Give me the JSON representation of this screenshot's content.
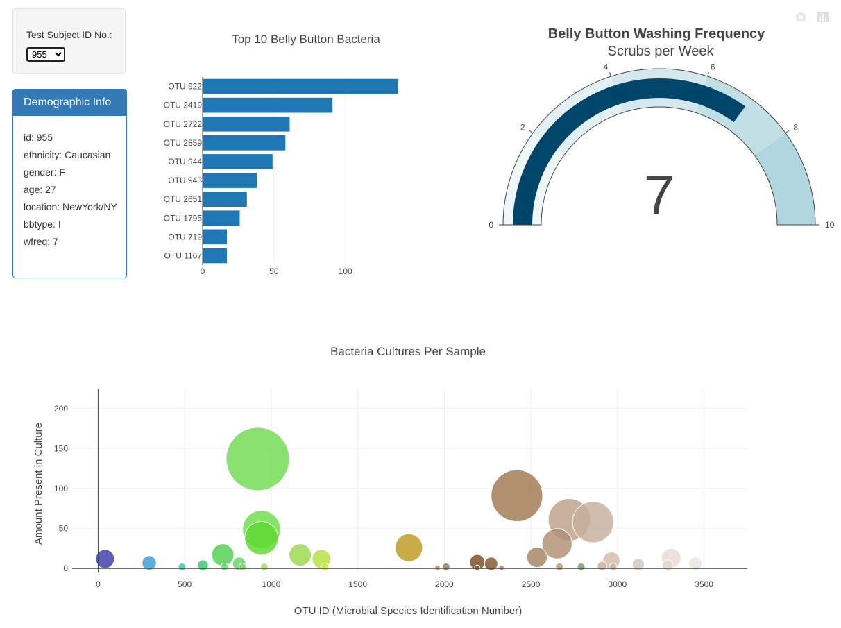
{
  "selector": {
    "label": "Test Subject ID No.:",
    "selected": "955"
  },
  "demographic": {
    "title": "Demographic Info",
    "rows": [
      "id: 955",
      "ethnicity: Caucasian",
      "gender: F",
      "age: 27",
      "location: NewYork/NY",
      "bbtype: I",
      "wfreq: 7"
    ]
  },
  "modebar": {
    "icons": [
      "camera-icon",
      "bar-chart-icon"
    ]
  },
  "colors": {
    "bar": "#1f77b4",
    "gauge_value": "#00456a",
    "gauge_steps": [
      "#f0f7f9",
      "#e3f0f4",
      "#d4e8ed",
      "#c3dfe6",
      "#afd5df"
    ]
  },
  "chart_data": [
    {
      "type": "bar",
      "orientation": "horizontal",
      "title": "Top 10 Belly Button Bacteria",
      "categories": [
        "OTU 922",
        "OTU 2419",
        "OTU 2722",
        "OTU 2859",
        "OTU 944",
        "OTU 943",
        "OTU 2651",
        "OTU 1795",
        "OTU 719",
        "OTU 1167"
      ],
      "values": [
        137,
        91,
        61,
        58,
        49,
        38,
        31,
        26,
        17,
        17
      ],
      "xlim": [
        0,
        140
      ],
      "xticks": [
        0,
        50,
        100
      ],
      "grid": true
    },
    {
      "type": "gauge",
      "title": "Belly Button Washing Frequency",
      "subtitle": "Scrubs per Week",
      "value": 7,
      "range": [
        0,
        10
      ],
      "ticks": [
        0,
        2,
        4,
        6,
        8,
        10
      ],
      "steps": [
        [
          0,
          2
        ],
        [
          2,
          4
        ],
        [
          4,
          6
        ],
        [
          6,
          8
        ],
        [
          8,
          10
        ]
      ]
    },
    {
      "type": "scatter",
      "mode": "bubble",
      "title": "Bacteria Cultures Per Sample",
      "xlabel": "OTU ID (Microbial Species Identification Number)",
      "ylabel": "Amount Present in Culture",
      "xlim": [
        -150,
        3750
      ],
      "ylim": [
        -5,
        225
      ],
      "xticks": [
        0,
        500,
        1000,
        1500,
        2000,
        2500,
        3000,
        3500
      ],
      "yticks": [
        0,
        50,
        100,
        150,
        200
      ],
      "grid": true,
      "points": [
        {
          "x": 40,
          "y": 12,
          "color": "#3b3ba8"
        },
        {
          "x": 295,
          "y": 7,
          "color": "#3a9ad4"
        },
        {
          "x": 485,
          "y": 2,
          "color": "#3ec0a8"
        },
        {
          "x": 605,
          "y": 4,
          "color": "#3cc574"
        },
        {
          "x": 720,
          "y": 17,
          "color": "#4fcf4f"
        },
        {
          "x": 730,
          "y": 2,
          "color": "#6bd66b"
        },
        {
          "x": 815,
          "y": 6,
          "color": "#63d463"
        },
        {
          "x": 835,
          "y": 2,
          "color": "#8fd878"
        },
        {
          "x": 922,
          "y": 137,
          "color": "#6fdc4f"
        },
        {
          "x": 943,
          "y": 38,
          "color": "#5cd92e"
        },
        {
          "x": 944,
          "y": 49,
          "color": "#6ede48"
        },
        {
          "x": 960,
          "y": 2,
          "color": "#a5dc6a"
        },
        {
          "x": 1167,
          "y": 17,
          "color": "#9bd84c"
        },
        {
          "x": 1290,
          "y": 12,
          "color": "#b7df3c"
        },
        {
          "x": 1310,
          "y": 2,
          "color": "#cde04a"
        },
        {
          "x": 1795,
          "y": 26,
          "color": "#bb9a1e"
        },
        {
          "x": 1960,
          "y": 1,
          "color": "#a0906a"
        },
        {
          "x": 2010,
          "y": 2,
          "color": "#8a7a5a"
        },
        {
          "x": 2190,
          "y": 8,
          "color": "#7a4a22"
        },
        {
          "x": 2190,
          "y": 1,
          "color": "#8a5a32"
        },
        {
          "x": 2270,
          "y": 6,
          "color": "#7e5530"
        },
        {
          "x": 2330,
          "y": 1,
          "color": "#a08060"
        },
        {
          "x": 2419,
          "y": 91,
          "color": "#a0774f"
        },
        {
          "x": 2535,
          "y": 14,
          "color": "#a58262"
        },
        {
          "x": 2651,
          "y": 31,
          "color": "#b08e72"
        },
        {
          "x": 2665,
          "y": 2,
          "color": "#b09478"
        },
        {
          "x": 2722,
          "y": 61,
          "color": "#bca08a"
        },
        {
          "x": 2790,
          "y": 2,
          "color": "#6c9c6c"
        },
        {
          "x": 2859,
          "y": 58,
          "color": "#c7af9c"
        },
        {
          "x": 2910,
          "y": 3,
          "color": "#c7b09c"
        },
        {
          "x": 2965,
          "y": 10,
          "color": "#d2bcab"
        },
        {
          "x": 2975,
          "y": 2,
          "color": "#c9b5a0"
        },
        {
          "x": 3120,
          "y": 5,
          "color": "#d2c8bd"
        },
        {
          "x": 3290,
          "y": 4,
          "color": "#ded4cc"
        },
        {
          "x": 3310,
          "y": 13,
          "color": "#e5ddd6"
        },
        {
          "x": 3450,
          "y": 6,
          "color": "#eae4de"
        }
      ]
    }
  ]
}
